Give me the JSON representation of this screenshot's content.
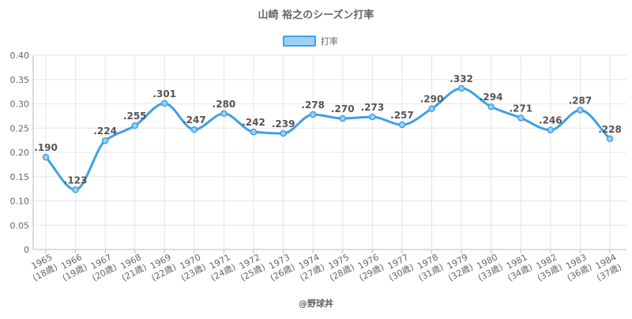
{
  "chart_data": {
    "type": "line",
    "title": "山崎 裕之のシーズン打率",
    "categories": [
      "1965",
      "1966",
      "1967",
      "1968",
      "1969",
      "1970",
      "1971",
      "1972",
      "1973",
      "1974",
      "1975",
      "1976",
      "1977",
      "1978",
      "1979",
      "1980",
      "1981",
      "1982",
      "1983",
      "1984"
    ],
    "sublabels": [
      "(18歳)",
      "(19歳)",
      "(20歳)",
      "(21歳)",
      "(22歳)",
      "(23歳)",
      "(24歳)",
      "(25歳)",
      "(26歳)",
      "(27歳)",
      "(28歳)",
      "(29歳)",
      "(30歳)",
      "(31歳)",
      "(32歳)",
      "(33歳)",
      "(34歳)",
      "(35歳)",
      "(36歳)",
      "(37歳)"
    ],
    "series": [
      {
        "name": "打率",
        "values": [
          0.19,
          0.123,
          0.224,
          0.255,
          0.301,
          0.247,
          0.28,
          0.242,
          0.239,
          0.278,
          0.27,
          0.273,
          0.257,
          0.29,
          0.332,
          0.294,
          0.271,
          0.246,
          0.287,
          0.228
        ],
        "labels": [
          ".190",
          ".123",
          ".224",
          ".255",
          ".301",
          ".247",
          ".280",
          ".242",
          ".239",
          ".278",
          ".270",
          ".273",
          ".257",
          ".290",
          ".332",
          ".294",
          ".271",
          ".246",
          ".287",
          ".228"
        ],
        "color": "#3ea1e6",
        "fill": "#9fd0f3"
      }
    ],
    "ylim": [
      0,
      0.4
    ],
    "yticks": [
      "0",
      "0.05",
      "0.10",
      "0.15",
      "0.20",
      "0.25",
      "0.30",
      "0.35",
      "0.40"
    ],
    "grid": true,
    "legend_position": "top-center",
    "source": "@野球丼"
  }
}
